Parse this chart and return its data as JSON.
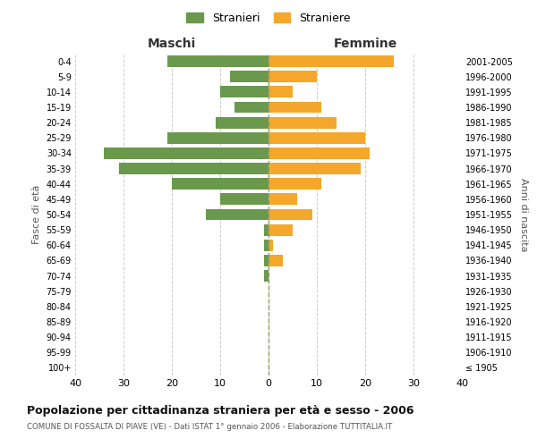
{
  "age_groups": [
    "100+",
    "95-99",
    "90-94",
    "85-89",
    "80-84",
    "75-79",
    "70-74",
    "65-69",
    "60-64",
    "55-59",
    "50-54",
    "45-49",
    "40-44",
    "35-39",
    "30-34",
    "25-29",
    "20-24",
    "15-19",
    "10-14",
    "5-9",
    "0-4"
  ],
  "birth_years": [
    "≤ 1905",
    "1906-1910",
    "1911-1915",
    "1916-1920",
    "1921-1925",
    "1926-1930",
    "1931-1935",
    "1936-1940",
    "1941-1945",
    "1946-1950",
    "1951-1955",
    "1956-1960",
    "1961-1965",
    "1966-1970",
    "1971-1975",
    "1976-1980",
    "1981-1985",
    "1986-1990",
    "1991-1995",
    "1996-2000",
    "2001-2005"
  ],
  "maschi": [
    0,
    0,
    0,
    0,
    0,
    0,
    1,
    1,
    1,
    1,
    13,
    10,
    20,
    31,
    34,
    21,
    11,
    7,
    10,
    8,
    21
  ],
  "femmine": [
    0,
    0,
    0,
    0,
    0,
    0,
    0,
    3,
    1,
    5,
    9,
    6,
    11,
    19,
    21,
    20,
    14,
    11,
    5,
    10,
    26
  ],
  "maschi_color": "#6a994e",
  "femmine_color": "#f4a72a",
  "title": "Popolazione per cittadinanza straniera per età e sesso - 2006",
  "subtitle": "COMUNE DI FOSSALTA DI PIAVE (VE) - Dati ISTAT 1° gennaio 2006 - Elaborazione TUTTITALIA.IT",
  "xlabel_left": "Maschi",
  "xlabel_right": "Femmine",
  "ylabel_left": "Fasce di età",
  "ylabel_right": "Anni di nascita",
  "legend_stranieri": "Stranieri",
  "legend_straniere": "Straniere",
  "xlim": 40,
  "background_color": "#ffffff",
  "grid_color": "#cccccc"
}
